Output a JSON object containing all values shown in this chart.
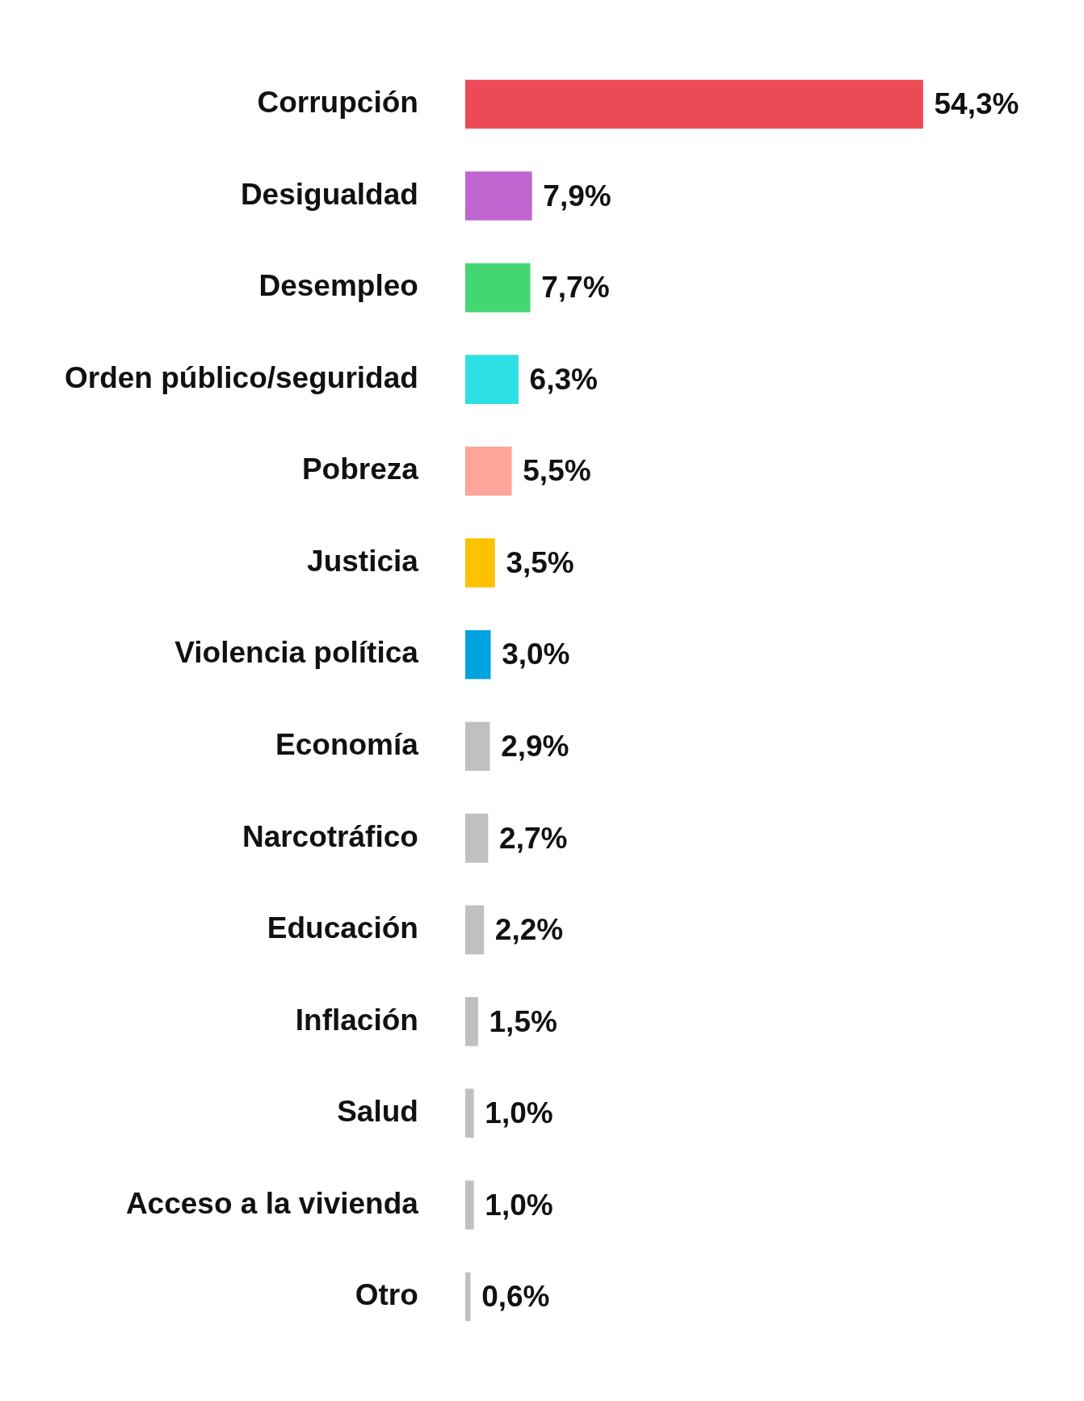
{
  "chart_data": {
    "type": "bar",
    "orientation": "horizontal",
    "categories": [
      "Corrupción",
      "Desigualdad",
      "Desempleo",
      "Orden público/seguridad",
      "Pobreza",
      "Justicia",
      "Violencia política",
      "Economía",
      "Narcotráfico",
      "Educación",
      "Inflación",
      "Salud",
      "Acceso a la vivienda",
      "Otro"
    ],
    "values": [
      54.3,
      7.9,
      7.7,
      6.3,
      5.5,
      3.5,
      3.0,
      2.9,
      2.7,
      2.2,
      1.5,
      1.0,
      1.0,
      0.6
    ],
    "colors": [
      "#ec4a56",
      "#c066d0",
      "#44d673",
      "#2de0e3",
      "#fea59a",
      "#fdc100",
      "#00a3e0",
      "#c0c0c0",
      "#c0c0c0",
      "#c0c0c0",
      "#c0c0c0",
      "#c0c0c0",
      "#c0c0c0",
      "#c0c0c0"
    ],
    "value_labels": [
      "54,3%",
      "7,9%",
      "7,7%",
      "6,3%",
      "5,5%",
      "3,5%",
      "3,0%",
      "2,9%",
      "2,7%",
      "2,2%",
      "1,5%",
      "1,0%",
      "1,0%",
      "0,6%"
    ],
    "legend": false
  }
}
